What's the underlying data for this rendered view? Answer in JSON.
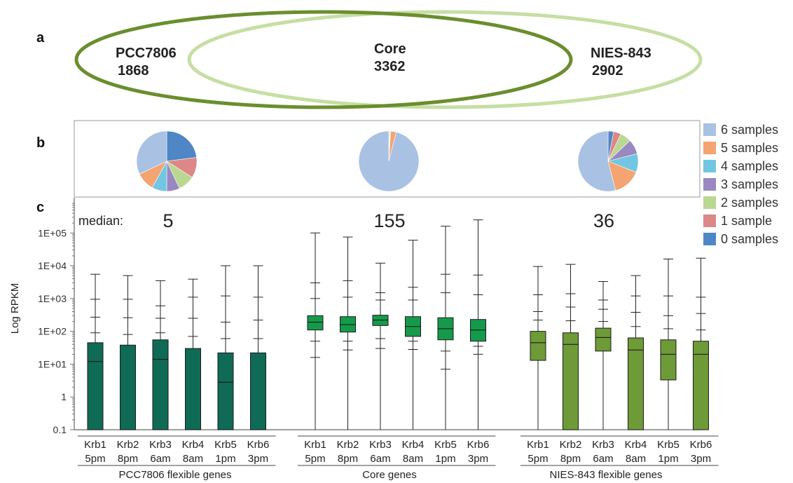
{
  "panels": {
    "a": "a",
    "b": "b",
    "c": "c"
  },
  "venn": {
    "left": {
      "name": "PCC7806",
      "count": "1868",
      "color": "#6a8e2e"
    },
    "core": {
      "name": "Core",
      "count": "3362"
    },
    "right": {
      "name": "NIES-843",
      "count": "2902",
      "color": "#c6dea3"
    }
  },
  "chart_data": [
    {
      "type": "pie",
      "panel": "b",
      "legend": [
        "6 samples",
        "5 samples",
        "4 samples",
        "3 samples",
        "2 samples",
        "1 sample",
        "0 samples"
      ],
      "colors": [
        "#a9c1e3",
        "#f3a471",
        "#72c6e1",
        "#9a88c1",
        "#b9d892",
        "#dd8788",
        "#4f86c6"
      ],
      "pies": [
        {
          "group": "PCC7806 flexible genes",
          "values": [
            0.32,
            0.1,
            0.08,
            0.07,
            0.09,
            0.11,
            0.23
          ]
        },
        {
          "group": "Core genes",
          "values": [
            0.96,
            0.03,
            0.0,
            0.0,
            0.004,
            0.002,
            0.004
          ]
        },
        {
          "group": "NIES-843 flexible genes",
          "values": [
            0.54,
            0.15,
            0.1,
            0.08,
            0.06,
            0.04,
            0.03
          ]
        }
      ]
    },
    {
      "type": "box",
      "panel": "c",
      "ylabel": "Log RPKM",
      "yscale": "log",
      "ylim": [
        0.1,
        800000
      ],
      "yticks": [
        0.1,
        1,
        10,
        100,
        1000,
        10000,
        100000
      ],
      "ytick_labels": [
        "0.1",
        "1",
        "1E+01",
        "1E+02",
        "1E+03",
        "1E+04",
        "1E+05"
      ],
      "median_label": "median:",
      "groups": [
        {
          "name": "PCC7806 flexible genes",
          "median_value": "5",
          "color": "#0f6b55",
          "boxes": [
            {
              "label": "Krb1",
              "time": "5pm",
              "min": 0.1,
              "q1": 0.1,
              "median": 12,
              "q3": 45,
              "max": 5500,
              "whisker_marks": [
                950,
                270,
                90
              ]
            },
            {
              "label": "Krb2",
              "time": "8pm",
              "min": 0.1,
              "q1": 0.1,
              "median": 0.1,
              "q3": 38,
              "max": 5000,
              "whisker_marks": [
                950,
                260,
                80
              ]
            },
            {
              "label": "Krb3",
              "time": "6am",
              "min": 0.1,
              "q1": 0.1,
              "median": 14,
              "q3": 55,
              "max": 3500,
              "whisker_marks": [
                600,
                250,
                90
              ]
            },
            {
              "label": "Krb4",
              "time": "8am",
              "min": 0.1,
              "q1": 0.1,
              "median": 0.1,
              "q3": 30,
              "max": 3900,
              "whisker_marks": [
                1100,
                250,
                70
              ]
            },
            {
              "label": "Krb5",
              "time": "1pm",
              "min": 0.1,
              "q1": 0.1,
              "median": 2.8,
              "q3": 22,
              "max": 10000,
              "whisker_marks": [
                1200,
                190,
                60
              ]
            },
            {
              "label": "Krb6",
              "time": "3pm",
              "min": 0.1,
              "q1": 0.1,
              "median": 0.1,
              "q3": 22,
              "max": 10000,
              "whisker_marks": [
                1100,
                220,
                60
              ]
            }
          ]
        },
        {
          "name": "Core genes",
          "median_value": "155",
          "color": "#159a4c",
          "boxes": [
            {
              "label": "Krb1",
              "time": "5pm",
              "min": 0.1,
              "q1": 110,
              "median": 190,
              "q3": 300,
              "max": 100000,
              "whisker_marks": [
                3000,
                1000,
                50,
                16
              ]
            },
            {
              "label": "Krb2",
              "time": "8pm",
              "min": 0.1,
              "q1": 95,
              "median": 160,
              "q3": 280,
              "max": 75000,
              "whisker_marks": [
                3500,
                1100,
                50,
                27
              ]
            },
            {
              "label": "Krb3",
              "time": "6am",
              "min": 0.1,
              "q1": 150,
              "median": 220,
              "q3": 310,
              "max": 12000,
              "whisker_marks": [
                1500,
                900,
                60,
                30
              ]
            },
            {
              "label": "Krb4",
              "time": "8am",
              "min": 0.1,
              "q1": 70,
              "median": 140,
              "q3": 280,
              "max": 60000,
              "whisker_marks": [
                2200,
                900,
                50,
                28
              ]
            },
            {
              "label": "Krb5",
              "time": "1pm",
              "min": 0.1,
              "q1": 55,
              "median": 120,
              "q3": 260,
              "max": 160000,
              "whisker_marks": [
                5500,
                1500,
                25,
                7
              ]
            },
            {
              "label": "Krb6",
              "time": "3pm",
              "min": 0.1,
              "q1": 50,
              "median": 110,
              "q3": 230,
              "max": 250000,
              "whisker_marks": [
                5200,
                1300,
                35,
                20
              ]
            }
          ]
        },
        {
          "name": "NIES-843 flexible genes",
          "median_value": "36",
          "color": "#6e9a38",
          "boxes": [
            {
              "label": "Krb1",
              "time": "5pm",
              "min": 0.1,
              "q1": 13,
              "median": 45,
              "q3": 100,
              "max": 9500,
              "whisker_marks": [
                1300,
                400,
                220
              ]
            },
            {
              "label": "Krb2",
              "time": "8pm",
              "min": 0.1,
              "q1": 0.1,
              "median": 40,
              "q3": 90,
              "max": 11000,
              "whisker_marks": [
                1400,
                550,
                210
              ]
            },
            {
              "label": "Krb3",
              "time": "6am",
              "min": 0.1,
              "q1": 25,
              "median": 65,
              "q3": 125,
              "max": 3300,
              "whisker_marks": [
                900,
                470,
                200
              ]
            },
            {
              "label": "Krb4",
              "time": "8am",
              "min": 0.1,
              "q1": 0.1,
              "median": 27,
              "q3": 63,
              "max": 5000,
              "whisker_marks": [
                1200,
                380,
                140
              ]
            },
            {
              "label": "Krb5",
              "time": "1pm",
              "min": 0.1,
              "q1": 3.3,
              "median": 20,
              "q3": 55,
              "max": 16000,
              "whisker_marks": [
                1200,
                300,
                120
              ]
            },
            {
              "label": "Krb6",
              "time": "3pm",
              "min": 0.1,
              "q1": 0.1,
              "median": 20,
              "q3": 50,
              "max": 17000,
              "whisker_marks": [
                1100,
                350,
                110
              ]
            }
          ]
        }
      ]
    }
  ]
}
